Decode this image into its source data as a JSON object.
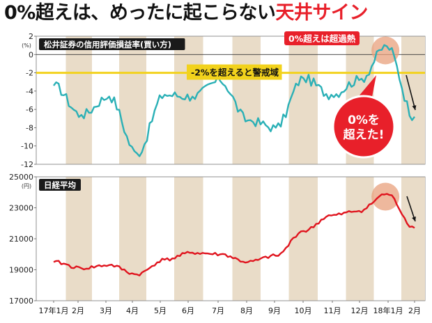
{
  "headline": {
    "part1": "0%超え",
    "part2": "は、めったに起こらない",
    "part3": "天井サイン"
  },
  "colors": {
    "headline_red": "#e8202a",
    "margin_line": "#2ab0b6",
    "nikkei_line": "#e0141e",
    "threshold_line": "#f2d21c",
    "stripe": "#e9dcc8",
    "highlight_circle": "#e8a07c",
    "callout_red": "#e8202a"
  },
  "x_axis_labels": [
    "17年1月",
    "2月",
    "3月",
    "4月",
    "5月",
    "6月",
    "7月",
    "8月",
    "9月",
    "10月",
    "11月",
    "12月",
    "18年1月",
    "2月"
  ],
  "chart_data": [
    {
      "type": "line",
      "title": "松井証券の信用評価損益率(買い方)",
      "y_unit": "(%)",
      "ylim": [
        -12,
        2
      ],
      "y_ticks": [
        2,
        0,
        -2,
        -4,
        -6,
        -8,
        -10,
        -12
      ],
      "x": [
        "2017-01",
        "2017-02",
        "2017-03",
        "2017-04",
        "2017-05",
        "2017-06",
        "2017-07",
        "2017-08",
        "2017-09",
        "2017-10",
        "2017-11",
        "2017-12",
        "2018-01",
        "2018-02"
      ],
      "series": [
        {
          "values": [
            -3.4,
            -6.6,
            -4.6,
            -10.8,
            -4.4,
            -4.6,
            -2.9,
            -7.2,
            -8.0,
            -2.6,
            -4.4,
            -2.8,
            0.9,
            -6.8
          ]
        }
      ],
      "threshold": {
        "value": -2,
        "label": "-2%を超えると警戒域"
      },
      "annotations": [
        {
          "text": "0%超えは超過熱"
        },
        {
          "text": "0%を\n超えた!"
        }
      ]
    },
    {
      "type": "line",
      "title": "日経平均",
      "y_unit": "(円)",
      "ylim": [
        17000,
        25000
      ],
      "y_ticks": [
        25000,
        23000,
        21000,
        19000,
        17000
      ],
      "x": [
        "2017-01",
        "2017-02",
        "2017-03",
        "2017-04",
        "2017-05",
        "2017-06",
        "2017-07",
        "2017-08",
        "2017-09",
        "2017-10",
        "2017-11",
        "2017-12",
        "2018-01",
        "2018-02"
      ],
      "series": [
        {
          "values": [
            19500,
            19100,
            19300,
            18700,
            19650,
            20100,
            20000,
            19500,
            19900,
            21500,
            22500,
            22800,
            23900,
            21700
          ]
        }
      ]
    }
  ]
}
